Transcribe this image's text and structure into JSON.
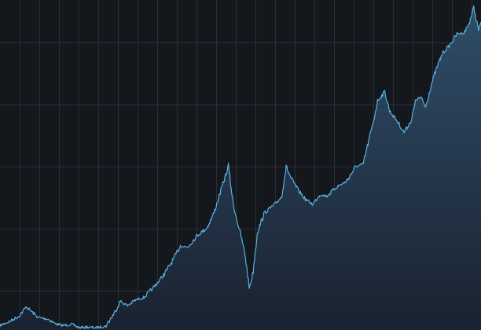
{
  "colors": {
    "background": "#14171c",
    "grid": "#2a2f37",
    "line": "#5ab0e0",
    "area_top": "#2f4d68",
    "area_bottom": "#1a2230"
  },
  "chart_data": {
    "type": "area",
    "title": "",
    "xlabel": "",
    "ylabel": "",
    "grid": true,
    "legend": "none",
    "xlim": [
      0,
      100
    ],
    "ylim": [
      0,
      100
    ],
    "x": [
      0,
      2,
      4,
      5.5,
      6.5,
      8,
      10,
      11.5,
      13,
      15,
      16.5,
      18,
      20,
      22,
      24,
      25,
      26.5,
      28,
      30,
      32,
      34,
      36,
      37.5,
      39,
      41,
      43,
      44.5,
      45.5,
      46.5,
      47.5,
      48.5,
      49.5,
      50.3,
      51,
      51.8,
      52.5,
      53.5,
      55,
      57,
      58.5,
      59.5,
      60.5,
      62,
      63.5,
      65,
      66.5,
      68,
      70,
      72,
      74,
      75.5,
      76.5,
      77.5,
      78.5,
      80,
      81,
      82.5,
      84,
      85.5,
      86.5,
      87.5,
      88.5,
      89.5,
      90.5,
      92,
      93.5,
      95,
      96.5,
      97.5,
      98.5,
      99.5,
      100
    ],
    "series": [
      {
        "values": [
          1.4,
          2.6,
          4.3,
          7.1,
          5.7,
          3.8,
          3.3,
          1.9,
          1.4,
          1.7,
          0.7,
          0.9,
          0.7,
          1.2,
          5.7,
          8.8,
          7.4,
          9.0,
          10.0,
          13.1,
          16.7,
          21.4,
          25.7,
          25.2,
          28.8,
          31.0,
          35.7,
          40.5,
          45.2,
          49.8,
          38.3,
          32.1,
          27.4,
          22.6,
          12.9,
          16.4,
          29.8,
          35.7,
          38.1,
          40.5,
          49.8,
          46.2,
          42.6,
          39.8,
          38.3,
          41.2,
          40.8,
          43.6,
          45.2,
          49.8,
          50.5,
          56.7,
          62.6,
          69.8,
          72.6,
          66.7,
          63.8,
          60.2,
          63.8,
          70.2,
          70.8,
          67.9,
          73.8,
          78.6,
          84.3,
          86.7,
          90.2,
          90.5,
          93.3,
          98.1,
          91.2,
          93.8
        ]
      }
    ]
  }
}
